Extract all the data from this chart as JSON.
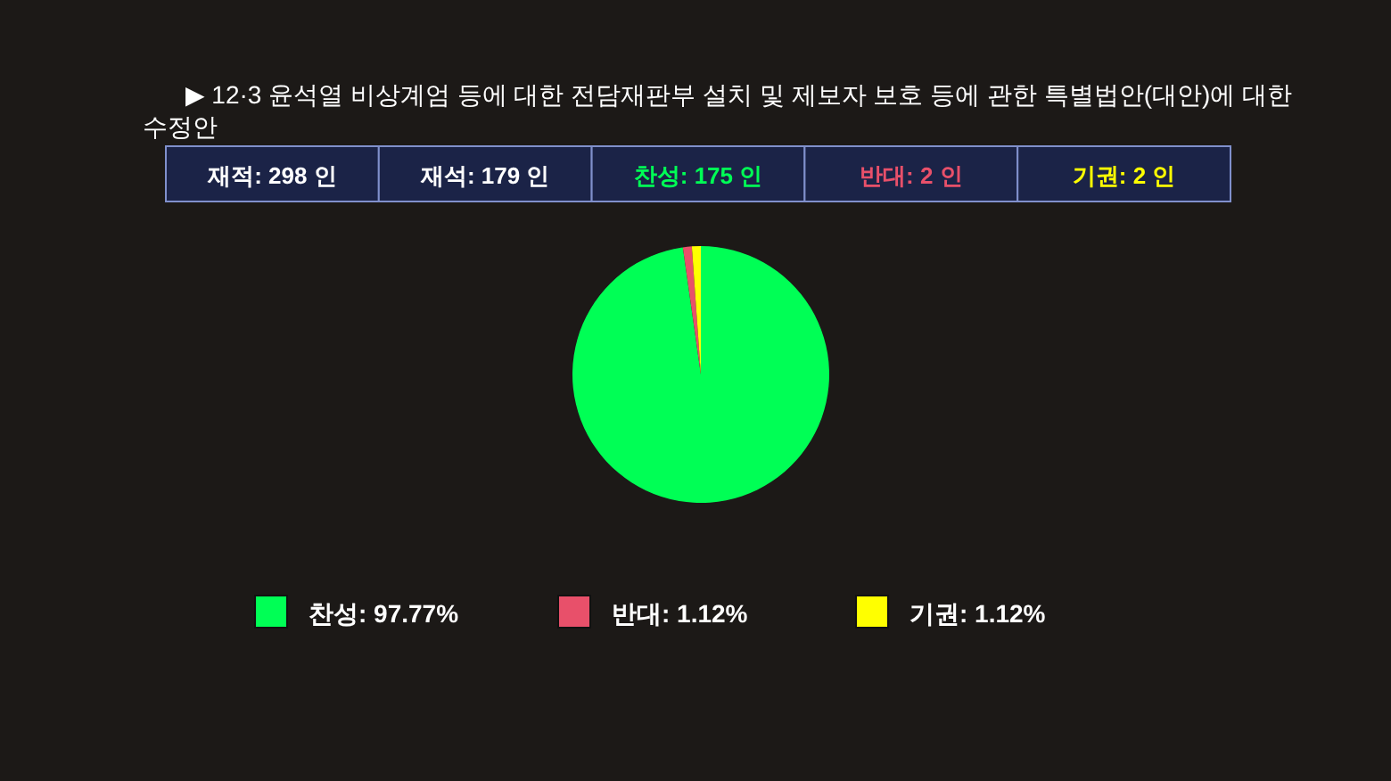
{
  "chart_data": {
    "type": "pie",
    "title": "▶ 12·3 윤석열 비상계엄 등에 대한 전담재판부 설치 및 제보자 보호 등에 관한 특별법안(대안)에 대한 수정안",
    "annotations": [
      "재적: 298 인",
      "재석: 179 인",
      "찬성: 175 인",
      "반대: 2 인",
      "기권: 2 인"
    ],
    "categories": [
      "찬성",
      "반대",
      "기권"
    ],
    "values": [
      97.77,
      1.12,
      1.12
    ],
    "colors": [
      "#00ff55",
      "#e8506a",
      "#ffff00"
    ],
    "value_labels": [
      "97.77%",
      "1.12%",
      "1.12%"
    ],
    "legend": "bottom"
  }
}
